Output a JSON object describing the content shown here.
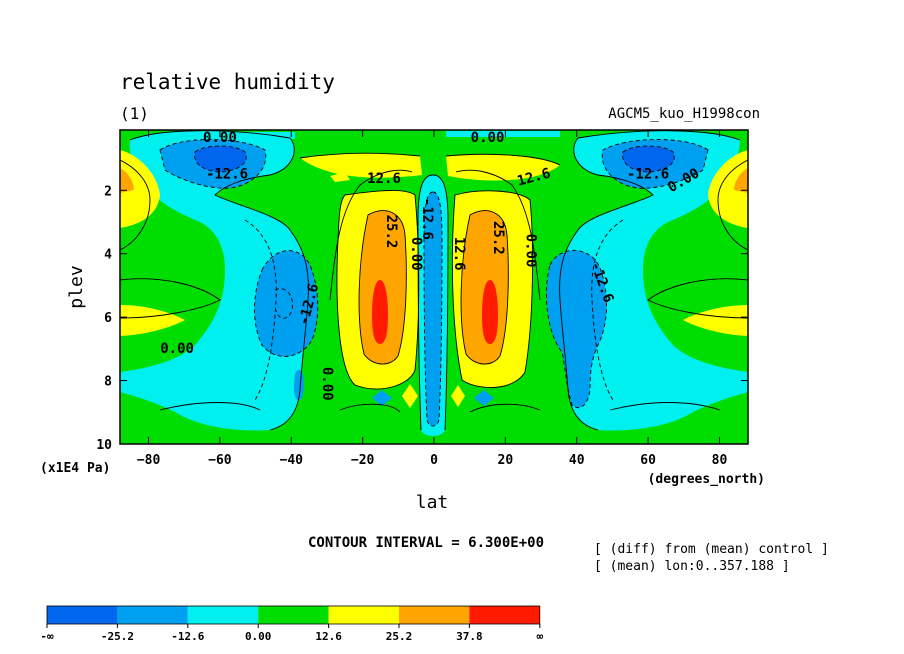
{
  "chart_data": {
    "type": "contour",
    "title": "relative humidity",
    "panel_label": "(1)",
    "run_label": "AGCM5_kuo_H1998con",
    "xlabel": "lat",
    "xunit": "(degrees_north)",
    "ylabel": "plev",
    "yunit": "(x1E4 Pa)",
    "xlim": [
      -88,
      88
    ],
    "ylim": [
      10,
      0.1
    ],
    "x_ticks": [
      -80,
      -60,
      -40,
      -20,
      0,
      20,
      40,
      60,
      80
    ],
    "y_ticks": [
      2,
      4,
      6,
      8,
      10
    ],
    "contour_interval_text": "CONTOUR INTERVAL = 6.300E+00",
    "notes": [
      "[ (diff) from (mean) control ]",
      "[ (mean) lon:0..357.188 ]"
    ],
    "levels": [
      -25.2,
      -12.6,
      0.0,
      12.6,
      25.2,
      37.8
    ],
    "colorbar": {
      "colors": [
        "#0066ee",
        "#00a0f0",
        "#00f0f0",
        "#00dd00",
        "#ffff00",
        "#ffa500",
        "#ff1a00"
      ],
      "labels": [
        "-∞",
        "-25.2",
        "-12.6",
        "0.00",
        "12.6",
        "25.2",
        "37.8",
        "∞"
      ]
    },
    "contour_labels": [
      {
        "text": "0.00",
        "lat": -60,
        "p": 0.35,
        "rot": 0
      },
      {
        "text": "0.00",
        "lat": 15,
        "p": 0.35,
        "rot": 0
      },
      {
        "text": "-12.6",
        "lat": -58,
        "p": 1.5,
        "rot": 0
      },
      {
        "text": "-12.6",
        "lat": 60,
        "p": 1.5,
        "rot": 0
      },
      {
        "text": "0.00",
        "lat": 70,
        "p": 1.7,
        "rot": -30
      },
      {
        "text": "12.6",
        "lat": -14,
        "p": 1.65,
        "rot": 0
      },
      {
        "text": "12.6",
        "lat": 28,
        "p": 1.6,
        "rot": -15
      },
      {
        "text": "-12.6",
        "lat": -2,
        "p": 2.9,
        "rot": 90
      },
      {
        "text": "0.00",
        "lat": -5,
        "p": 4.0,
        "rot": 90
      },
      {
        "text": "12.6",
        "lat": 7,
        "p": 4.0,
        "rot": 90
      },
      {
        "text": "25.2",
        "lat": -12,
        "p": 3.3,
        "rot": 90
      },
      {
        "text": "25.2",
        "lat": 18,
        "p": 3.5,
        "rot": 90
      },
      {
        "text": "0.00",
        "lat": 27,
        "p": 3.9,
        "rot": 90
      },
      {
        "text": "-12.6",
        "lat": -35,
        "p": 5.6,
        "rot": -75
      },
      {
        "text": "-12.6",
        "lat": 47,
        "p": 4.9,
        "rot": 70
      },
      {
        "text": "0.00",
        "lat": -72,
        "p": 7.0,
        "rot": 0
      },
      {
        "text": "0.00",
        "lat": -30,
        "p": 8.1,
        "rot": 90
      }
    ]
  }
}
